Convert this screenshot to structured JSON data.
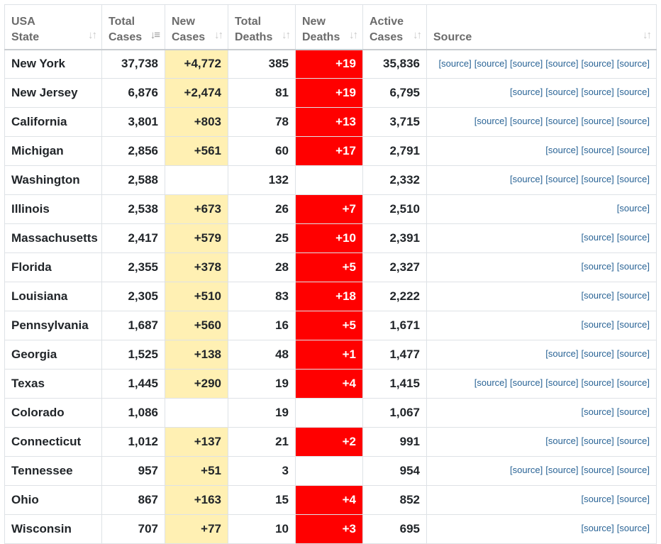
{
  "headers": [
    {
      "line1": "USA",
      "line2": "State",
      "sort_icon": "sort-both-icon",
      "active": false
    },
    {
      "line1": "Total",
      "line2": "Cases",
      "sort_icon": "sort-desc-icon",
      "active": true
    },
    {
      "line1": "New",
      "line2": "Cases",
      "sort_icon": "sort-both-icon",
      "active": false
    },
    {
      "line1": "Total",
      "line2": "Deaths",
      "sort_icon": "sort-both-icon",
      "active": false
    },
    {
      "line1": "New",
      "line2": "Deaths",
      "sort_icon": "sort-both-icon",
      "active": false
    },
    {
      "line1": "Active",
      "line2": "Cases",
      "sort_icon": "sort-both-icon",
      "active": false
    },
    {
      "line1": "",
      "line2": "Source",
      "sort_icon": "sort-both-icon",
      "active": false
    }
  ],
  "source_label": "[source]",
  "colors": {
    "new_cases_bg": "#fff0b3",
    "new_deaths_bg": "#ff0000",
    "link": "#2a6496"
  },
  "rows": [
    {
      "state": "New York",
      "total_cases": "37,738",
      "new_cases": "+4,772",
      "total_deaths": "385",
      "new_deaths": "+19",
      "active_cases": "35,836",
      "sources": 6
    },
    {
      "state": "New Jersey",
      "total_cases": "6,876",
      "new_cases": "+2,474",
      "total_deaths": "81",
      "new_deaths": "+19",
      "active_cases": "6,795",
      "sources": 4
    },
    {
      "state": "California",
      "total_cases": "3,801",
      "new_cases": "+803",
      "total_deaths": "78",
      "new_deaths": "+13",
      "active_cases": "3,715",
      "sources": 5
    },
    {
      "state": "Michigan",
      "total_cases": "2,856",
      "new_cases": "+561",
      "total_deaths": "60",
      "new_deaths": "+17",
      "active_cases": "2,791",
      "sources": 3
    },
    {
      "state": "Washington",
      "total_cases": "2,588",
      "new_cases": "",
      "total_deaths": "132",
      "new_deaths": "",
      "active_cases": "2,332",
      "sources": 4
    },
    {
      "state": "Illinois",
      "total_cases": "2,538",
      "new_cases": "+673",
      "total_deaths": "26",
      "new_deaths": "+7",
      "active_cases": "2,510",
      "sources": 1
    },
    {
      "state": "Massachusetts",
      "total_cases": "2,417",
      "new_cases": "+579",
      "total_deaths": "25",
      "new_deaths": "+10",
      "active_cases": "2,391",
      "sources": 2
    },
    {
      "state": "Florida",
      "total_cases": "2,355",
      "new_cases": "+378",
      "total_deaths": "28",
      "new_deaths": "+5",
      "active_cases": "2,327",
      "sources": 2
    },
    {
      "state": "Louisiana",
      "total_cases": "2,305",
      "new_cases": "+510",
      "total_deaths": "83",
      "new_deaths": "+18",
      "active_cases": "2,222",
      "sources": 2
    },
    {
      "state": "Pennsylvania",
      "total_cases": "1,687",
      "new_cases": "+560",
      "total_deaths": "16",
      "new_deaths": "+5",
      "active_cases": "1,671",
      "sources": 2
    },
    {
      "state": "Georgia",
      "total_cases": "1,525",
      "new_cases": "+138",
      "total_deaths": "48",
      "new_deaths": "+1",
      "active_cases": "1,477",
      "sources": 3
    },
    {
      "state": "Texas",
      "total_cases": "1,445",
      "new_cases": "+290",
      "total_deaths": "19",
      "new_deaths": "+4",
      "active_cases": "1,415",
      "sources": 5
    },
    {
      "state": "Colorado",
      "total_cases": "1,086",
      "new_cases": "",
      "total_deaths": "19",
      "new_deaths": "",
      "active_cases": "1,067",
      "sources": 2
    },
    {
      "state": "Connecticut",
      "total_cases": "1,012",
      "new_cases": "+137",
      "total_deaths": "21",
      "new_deaths": "+2",
      "active_cases": "991",
      "sources": 3
    },
    {
      "state": "Tennessee",
      "total_cases": "957",
      "new_cases": "+51",
      "total_deaths": "3",
      "new_deaths": "",
      "active_cases": "954",
      "sources": 4
    },
    {
      "state": "Ohio",
      "total_cases": "867",
      "new_cases": "+163",
      "total_deaths": "15",
      "new_deaths": "+4",
      "active_cases": "852",
      "sources": 2
    },
    {
      "state": "Wisconsin",
      "total_cases": "707",
      "new_cases": "+77",
      "total_deaths": "10",
      "new_deaths": "+3",
      "active_cases": "695",
      "sources": 2
    }
  ]
}
